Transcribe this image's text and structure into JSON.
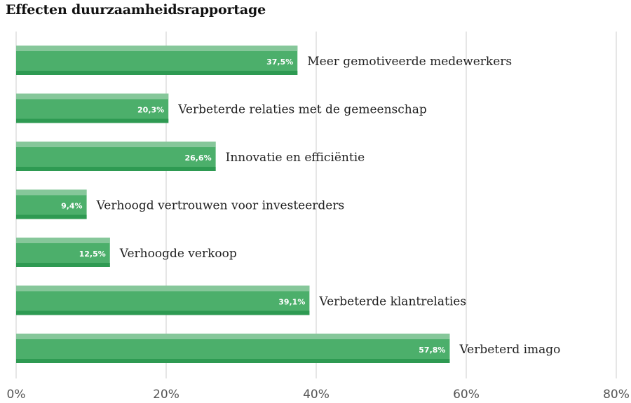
{
  "chart_data": {
    "type": "bar",
    "orientation": "horizontal",
    "title": "Effecten duurzaamheidsrapportage",
    "categories": [
      "Meer gemotiveerde medewerkers",
      "Verbeterde relaties met de gemeenschap",
      "Innovatie en efficiëntie",
      "Verhoogd vertrouwen voor investeerders",
      "Verhoogde verkoop",
      "Verbeterde klantrelaties",
      "Verbeterd imago"
    ],
    "values": [
      37.5,
      20.3,
      26.6,
      9.4,
      12.5,
      39.1,
      57.8
    ],
    "value_labels": [
      "37,5%",
      "20,3%",
      "26,6%",
      "9,4%",
      "12,5%",
      "39,1%",
      "57,8%"
    ],
    "x_ticks": [
      0,
      20,
      40,
      60,
      80
    ],
    "x_tick_labels": [
      "0%",
      "20%",
      "40%",
      "60%",
      "80%"
    ],
    "xlim": [
      0,
      80
    ],
    "grid": true,
    "colors": {
      "bar_main": "#4caf6b",
      "bar_top": "#86c79a",
      "bar_bottom": "#2e9a52",
      "grid": "#dddddd",
      "label_text": "#222222",
      "value_text": "#ffffff"
    }
  }
}
